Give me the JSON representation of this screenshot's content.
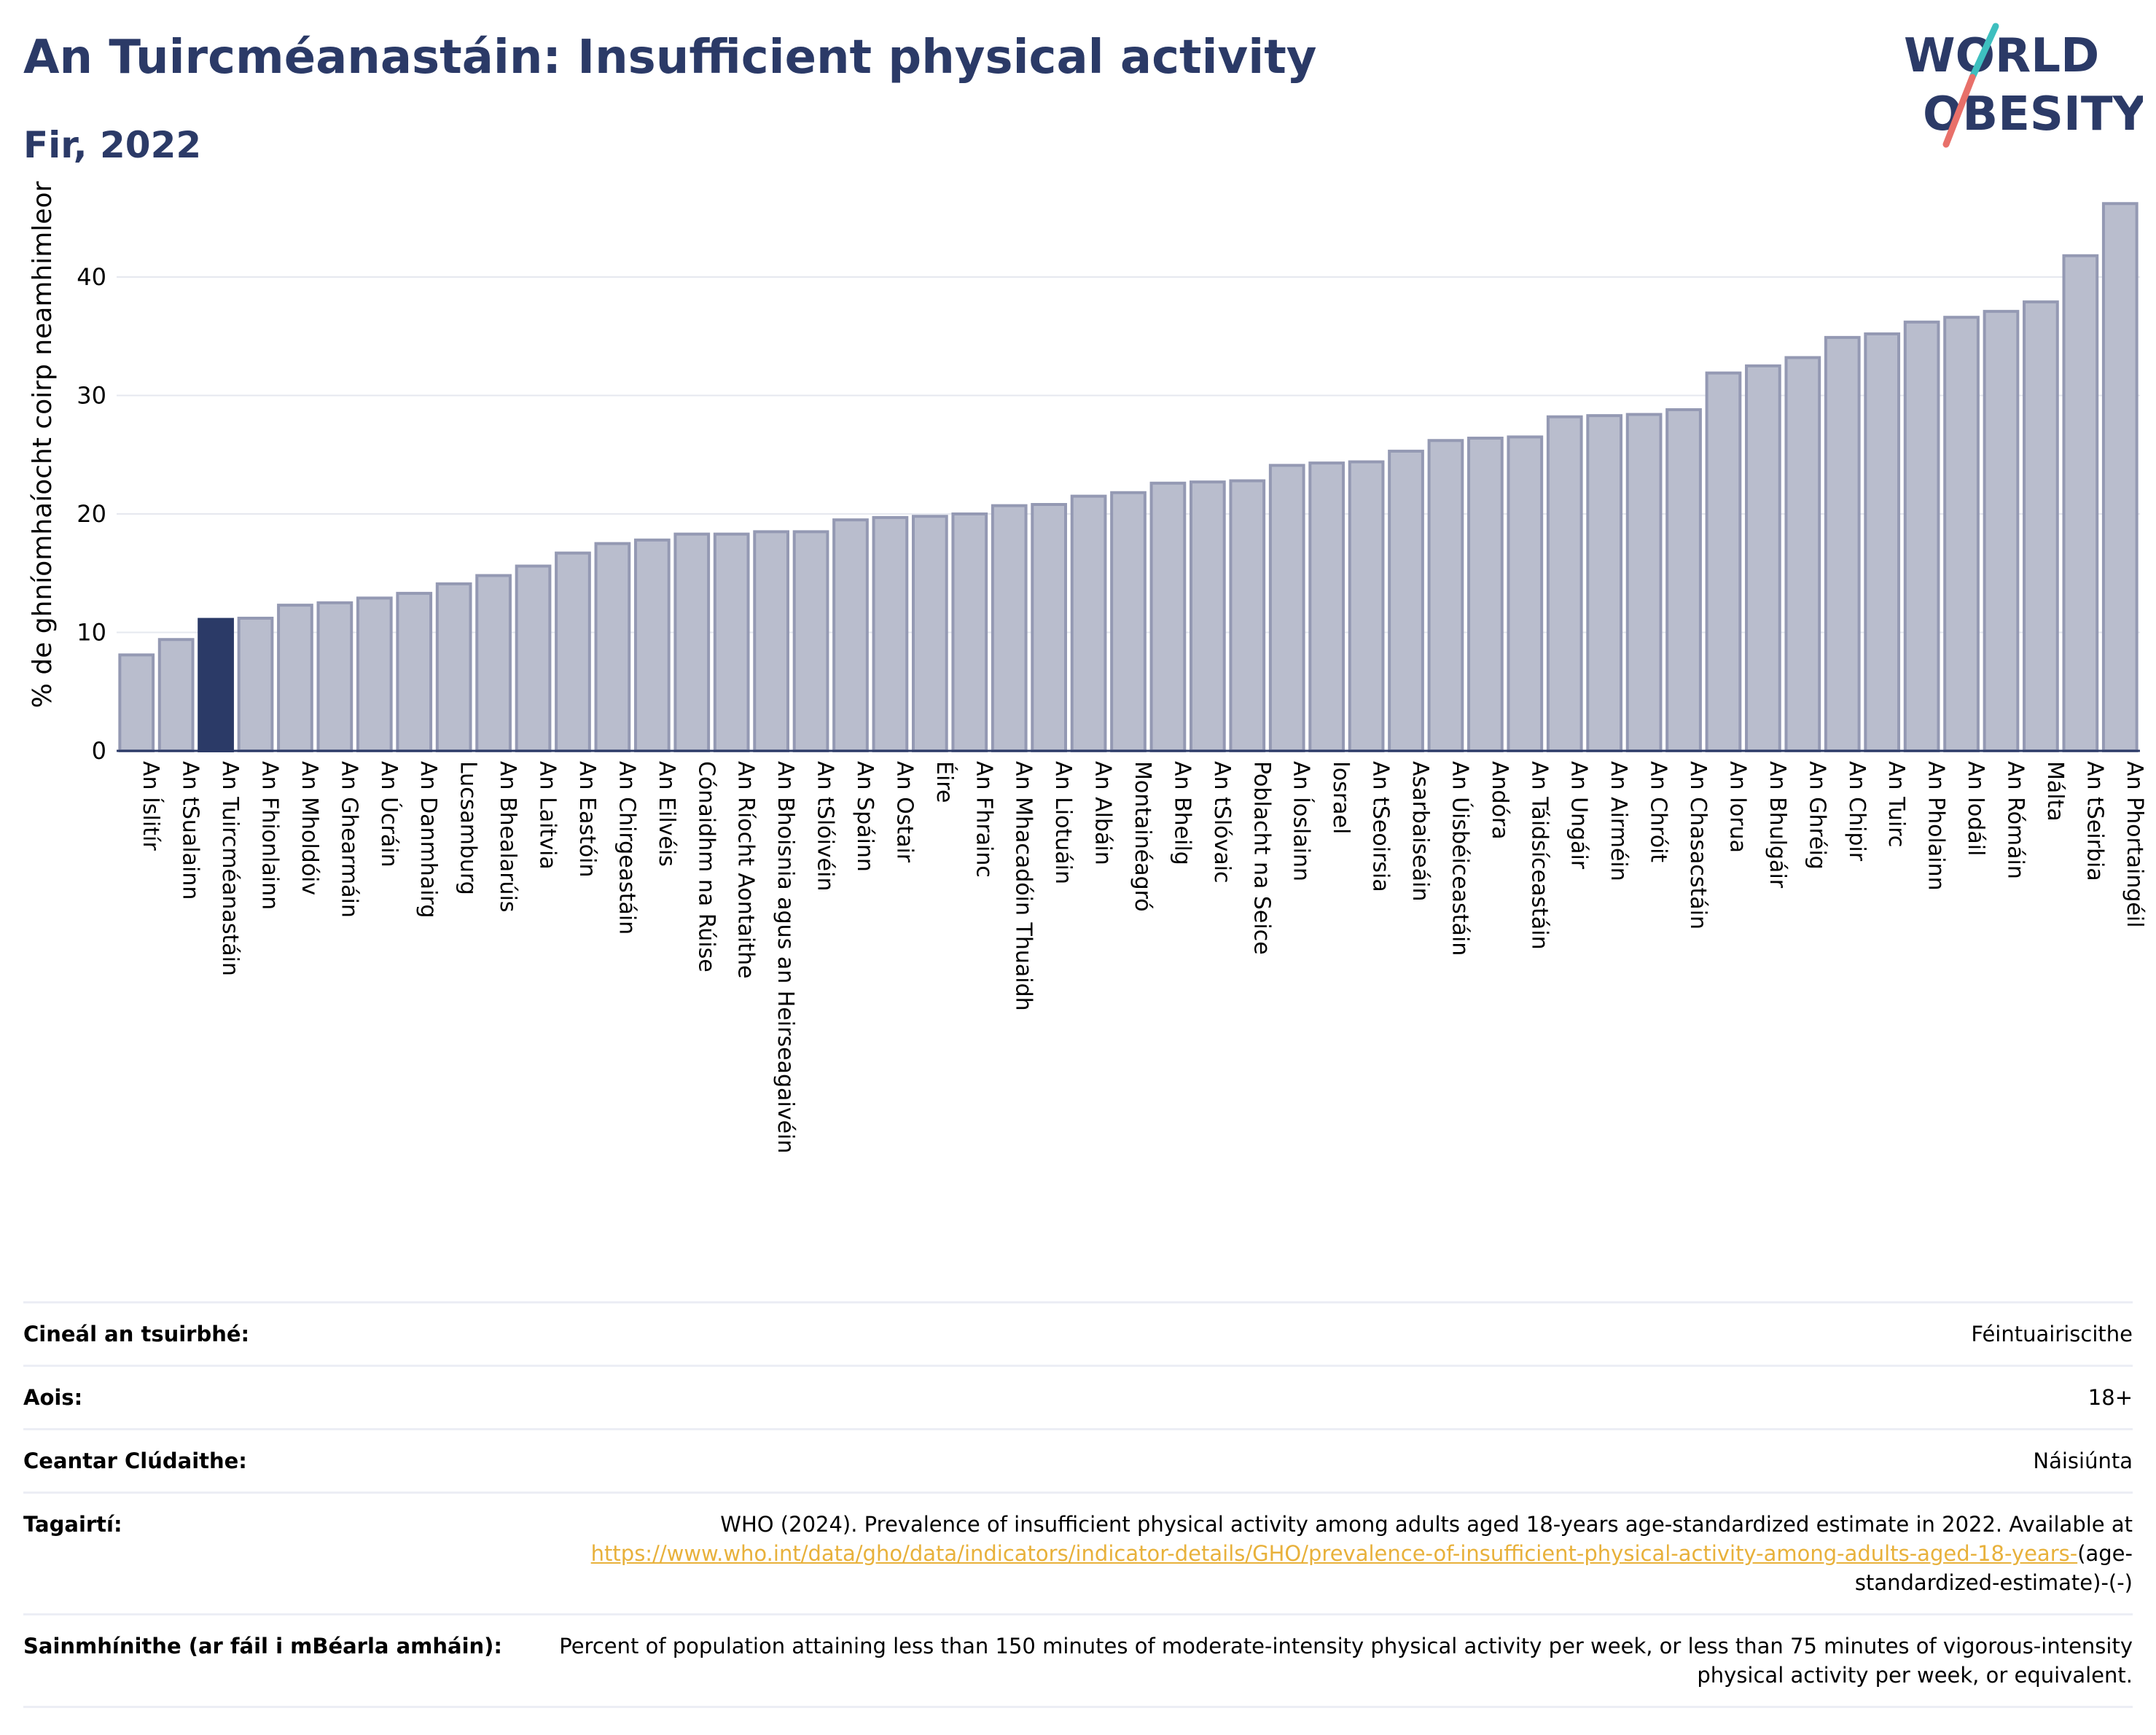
{
  "title": "An Tuircméanastáin: Insufficient physical activity",
  "subtitle": "Fir, 2022",
  "logo": {
    "line1": "WORLD",
    "line2": "OBESITY"
  },
  "colors": {
    "title": "#2b3a67",
    "bar_default": "#b9bdcd",
    "bar_default_border": "#9499b3",
    "bar_highlight": "#2b3a67",
    "logo_teal": "#3ebfbf",
    "logo_coral": "#e8706a",
    "link": "#e8b13b"
  },
  "chart_data": {
    "type": "bar",
    "title": "An Tuircméanastáin: Insufficient physical activity",
    "subtitle": "Fir, 2022",
    "ylabel": "% de ghníomhaíocht coirp neamhimleor",
    "xlabel": "",
    "ylim": [
      0,
      48
    ],
    "yticks": [
      0,
      10,
      20,
      30,
      40
    ],
    "grid": true,
    "highlight": "An Tuircméanastáin",
    "categories": [
      "An Íslitír",
      "An tSualainn",
      "An Tuircméanastáin",
      "An Fhionlainn",
      "An Mholdóiv",
      "An Ghearmáin",
      "An Úcráin",
      "An Danmhairg",
      "Lucsamburg",
      "An Bhealarúis",
      "An Laitvia",
      "An Eastóin",
      "An Chirgeastáin",
      "An Eilvéis",
      "Cónaidhm na Rúise",
      "An Ríocht Aontaithe",
      "An Bhoisnia agus an Heirseagaivéin",
      "An tSlóivéin",
      "An Spáinn",
      "An Ostair",
      "Éire",
      "An Fhrainc",
      "An Mhacadóin Thuaidh",
      "An Liotuáin",
      "An Albáin",
      "Montainéagró",
      "An Bheilg",
      "An tSlóvaic",
      "Poblacht na Seice",
      "An Íoslainn",
      "Iosrael",
      "An tSeoirsia",
      "Asarbaiseáin",
      "An Úisbéiceastáin",
      "Andóra",
      "An Táidsíceastáin",
      "An Ungáir",
      "An Airméin",
      "An Chróit",
      "An Chasacstáin",
      "An Iorua",
      "An Bhulgáir",
      "An Ghréig",
      "An Chipir",
      "An Tuirc",
      "An Pholainn",
      "An Iodáil",
      "An Rómáin",
      "Málta",
      "An tSeirbia",
      "An Phortaingéil"
    ],
    "values": [
      8.1,
      9.4,
      11.1,
      11.2,
      12.3,
      12.5,
      12.9,
      13.3,
      14.1,
      14.8,
      15.6,
      16.7,
      17.5,
      17.8,
      18.3,
      18.3,
      18.5,
      18.5,
      19.5,
      19.7,
      19.8,
      20.0,
      20.7,
      20.8,
      21.5,
      21.8,
      22.6,
      22.7,
      22.8,
      24.1,
      24.3,
      24.4,
      25.3,
      26.2,
      26.4,
      26.5,
      28.2,
      28.3,
      28.4,
      28.8,
      31.9,
      32.5,
      33.2,
      34.9,
      35.2,
      36.2,
      36.6,
      37.1,
      37.9,
      41.8,
      46.2
    ]
  },
  "meta": {
    "survey_type_label": "Cineál an tsuirbhé:",
    "survey_type_value": "Féintuairiscithe",
    "age_label": "Aois:",
    "age_value": "18+",
    "coverage_label": "Ceantar Clúdaithe:",
    "coverage_value": "Náisiúnta",
    "references_label": "Tagairtí:",
    "references_text": "WHO (2024). Prevalence of insufficient physical activity among adults aged 18-years age-standardized estimate in 2022. Available at",
    "references_link": "https://www.who.int/data/gho/data/indicators/indicator-details/GHO/prevalence-of-insufficient-physical-activity-among-adults-aged-18-years-",
    "references_suffix": "(age-standardized-estimate)-(-)",
    "definitions_label": "Sainmhínithe (ar fáil i mBéarla amháin):",
    "definitions_value": "Percent of population attaining less than 150 minutes of moderate-intensity physical activity per week, or less than 75 minutes of vigorous-intensity physical activity per week, or equivalent."
  }
}
